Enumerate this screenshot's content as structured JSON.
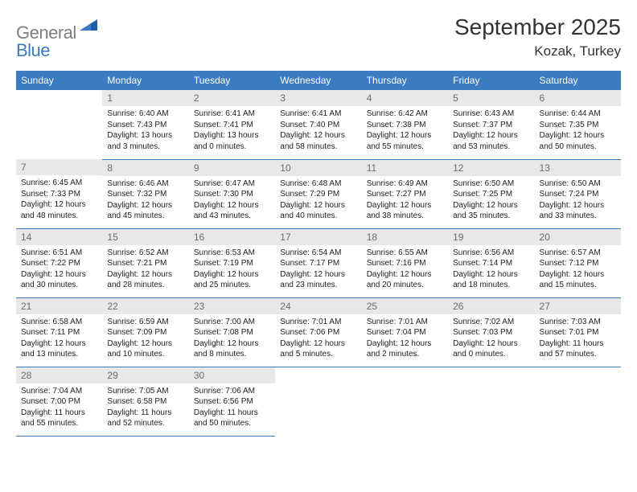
{
  "logo": {
    "text1": "General",
    "text2": "Blue"
  },
  "title": "September 2025",
  "location": "Kozak, Turkey",
  "colors": {
    "header_bg": "#3b7bbf",
    "header_fg": "#ffffff",
    "daynum_bg": "#e8e8e8",
    "daynum_fg": "#6b6b6b",
    "text": "#222222",
    "rule": "#3b7bbf",
    "logo_gray": "#808080",
    "logo_blue": "#3b7bbf",
    "background": "#ffffff"
  },
  "weekdays": [
    "Sunday",
    "Monday",
    "Tuesday",
    "Wednesday",
    "Thursday",
    "Friday",
    "Saturday"
  ],
  "weeks": [
    [
      null,
      {
        "n": "1",
        "sr": "6:40 AM",
        "ss": "7:43 PM",
        "dl": "13 hours and 3 minutes."
      },
      {
        "n": "2",
        "sr": "6:41 AM",
        "ss": "7:41 PM",
        "dl": "13 hours and 0 minutes."
      },
      {
        "n": "3",
        "sr": "6:41 AM",
        "ss": "7:40 PM",
        "dl": "12 hours and 58 minutes."
      },
      {
        "n": "4",
        "sr": "6:42 AM",
        "ss": "7:38 PM",
        "dl": "12 hours and 55 minutes."
      },
      {
        "n": "5",
        "sr": "6:43 AM",
        "ss": "7:37 PM",
        "dl": "12 hours and 53 minutes."
      },
      {
        "n": "6",
        "sr": "6:44 AM",
        "ss": "7:35 PM",
        "dl": "12 hours and 50 minutes."
      }
    ],
    [
      {
        "n": "7",
        "sr": "6:45 AM",
        "ss": "7:33 PM",
        "dl": "12 hours and 48 minutes."
      },
      {
        "n": "8",
        "sr": "6:46 AM",
        "ss": "7:32 PM",
        "dl": "12 hours and 45 minutes."
      },
      {
        "n": "9",
        "sr": "6:47 AM",
        "ss": "7:30 PM",
        "dl": "12 hours and 43 minutes."
      },
      {
        "n": "10",
        "sr": "6:48 AM",
        "ss": "7:29 PM",
        "dl": "12 hours and 40 minutes."
      },
      {
        "n": "11",
        "sr": "6:49 AM",
        "ss": "7:27 PM",
        "dl": "12 hours and 38 minutes."
      },
      {
        "n": "12",
        "sr": "6:50 AM",
        "ss": "7:25 PM",
        "dl": "12 hours and 35 minutes."
      },
      {
        "n": "13",
        "sr": "6:50 AM",
        "ss": "7:24 PM",
        "dl": "12 hours and 33 minutes."
      }
    ],
    [
      {
        "n": "14",
        "sr": "6:51 AM",
        "ss": "7:22 PM",
        "dl": "12 hours and 30 minutes."
      },
      {
        "n": "15",
        "sr": "6:52 AM",
        "ss": "7:21 PM",
        "dl": "12 hours and 28 minutes."
      },
      {
        "n": "16",
        "sr": "6:53 AM",
        "ss": "7:19 PM",
        "dl": "12 hours and 25 minutes."
      },
      {
        "n": "17",
        "sr": "6:54 AM",
        "ss": "7:17 PM",
        "dl": "12 hours and 23 minutes."
      },
      {
        "n": "18",
        "sr": "6:55 AM",
        "ss": "7:16 PM",
        "dl": "12 hours and 20 minutes."
      },
      {
        "n": "19",
        "sr": "6:56 AM",
        "ss": "7:14 PM",
        "dl": "12 hours and 18 minutes."
      },
      {
        "n": "20",
        "sr": "6:57 AM",
        "ss": "7:12 PM",
        "dl": "12 hours and 15 minutes."
      }
    ],
    [
      {
        "n": "21",
        "sr": "6:58 AM",
        "ss": "7:11 PM",
        "dl": "12 hours and 13 minutes."
      },
      {
        "n": "22",
        "sr": "6:59 AM",
        "ss": "7:09 PM",
        "dl": "12 hours and 10 minutes."
      },
      {
        "n": "23",
        "sr": "7:00 AM",
        "ss": "7:08 PM",
        "dl": "12 hours and 8 minutes."
      },
      {
        "n": "24",
        "sr": "7:01 AM",
        "ss": "7:06 PM",
        "dl": "12 hours and 5 minutes."
      },
      {
        "n": "25",
        "sr": "7:01 AM",
        "ss": "7:04 PM",
        "dl": "12 hours and 2 minutes."
      },
      {
        "n": "26",
        "sr": "7:02 AM",
        "ss": "7:03 PM",
        "dl": "12 hours and 0 minutes."
      },
      {
        "n": "27",
        "sr": "7:03 AM",
        "ss": "7:01 PM",
        "dl": "11 hours and 57 minutes."
      }
    ],
    [
      {
        "n": "28",
        "sr": "7:04 AM",
        "ss": "7:00 PM",
        "dl": "11 hours and 55 minutes."
      },
      {
        "n": "29",
        "sr": "7:05 AM",
        "ss": "6:58 PM",
        "dl": "11 hours and 52 minutes."
      },
      {
        "n": "30",
        "sr": "7:06 AM",
        "ss": "6:56 PM",
        "dl": "11 hours and 50 minutes."
      },
      null,
      null,
      null,
      null
    ]
  ],
  "labels": {
    "sunrise": "Sunrise:",
    "sunset": "Sunset:",
    "daylight": "Daylight:"
  }
}
